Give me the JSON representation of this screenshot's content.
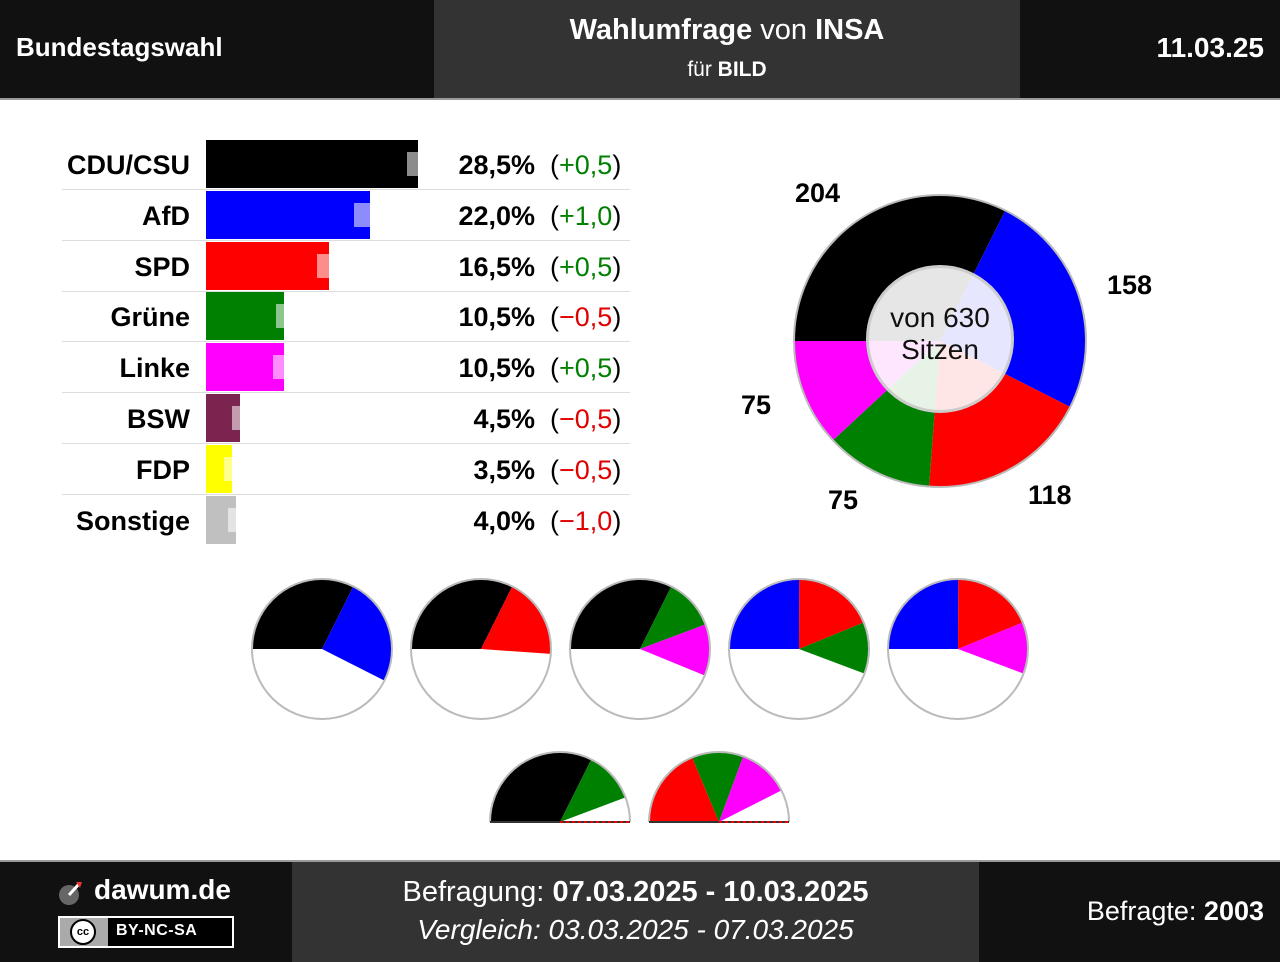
{
  "header": {
    "left_title": "Bundestagswahl",
    "poll_title_bold": "Wahlumfrage",
    "poll_title_von": "von",
    "poll_institute": "INSA",
    "poll_sub_fuer": "für",
    "poll_client": "BILD",
    "date": "11.03.25"
  },
  "footer": {
    "brand": "dawum.de",
    "license": "BY-NC-SA",
    "license_icon_text": "cc",
    "befragung_label": "Befragung:",
    "befragung_range": "07.03.2025 - 10.03.2025",
    "vergleich_label": "Vergleich:",
    "vergleich_range": "03.03.2025 - 07.03.2025",
    "befragte_label": "Befragte:",
    "befragte_value": "2003"
  },
  "chart_data": [
    {
      "type": "bar",
      "categories": [
        "CDU/CSU",
        "AfD",
        "SPD",
        "Grüne",
        "Linke",
        "BSW",
        "FDP",
        "Sonstige"
      ],
      "values": [
        28.5,
        22.0,
        16.5,
        10.5,
        10.5,
        4.5,
        3.5,
        4.0
      ],
      "previous": [
        28.0,
        21.0,
        16.0,
        11.0,
        10.0,
        5.0,
        4.0,
        5.0
      ],
      "value_labels": [
        "28,5%",
        "22,0%",
        "16,5%",
        "10,5%",
        "10,5%",
        "4,5%",
        "3,5%",
        "4,0%"
      ],
      "diff_labels": [
        "(+0,5)",
        "(+1,0)",
        "(+0,5)",
        "(−0,5)",
        "(+0,5)",
        "(−0,5)",
        "(−0,5)",
        "(−1,0)"
      ],
      "diff_signs": [
        "pos",
        "pos",
        "pos",
        "neg",
        "pos",
        "neg",
        "neg",
        "neg"
      ],
      "colors": [
        "#000000",
        "#0000ff",
        "#ff0000",
        "#008000",
        "#ff00ff",
        "#7b2450",
        "#ffff00",
        "#c0c0c0"
      ]
    },
    {
      "type": "pie",
      "categories": [
        "CDU/CSU",
        "AfD",
        "SPD",
        "Grüne",
        "Linke"
      ],
      "values": [
        204,
        158,
        118,
        75,
        75
      ],
      "labels": [
        "204",
        "158",
        "118",
        "75",
        "75"
      ],
      "colors": [
        "#000000",
        "#0000ff",
        "#ff0000",
        "#008000",
        "#ff00ff"
      ],
      "center_line1": "von 630",
      "center_line2": "Sitzen"
    },
    {
      "type": "pie",
      "subtype": "coalitions",
      "coalitions": [
        {
          "parties": [
            "CDU/CSU",
            "AfD"
          ],
          "seats": [
            204,
            158
          ],
          "colors": [
            "#000000",
            "#0000ff"
          ]
        },
        {
          "parties": [
            "CDU/CSU",
            "SPD"
          ],
          "seats": [
            204,
            118
          ],
          "colors": [
            "#000000",
            "#ff0000"
          ]
        },
        {
          "parties": [
            "CDU/CSU",
            "Grüne",
            "Linke"
          ],
          "seats": [
            204,
            75,
            75
          ],
          "colors": [
            "#000000",
            "#008000",
            "#ff00ff"
          ]
        },
        {
          "parties": [
            "AfD",
            "SPD",
            "Grüne"
          ],
          "seats": [
            158,
            118,
            75
          ],
          "colors": [
            "#0000ff",
            "#ff0000",
            "#008000"
          ]
        },
        {
          "parties": [
            "AfD",
            "SPD",
            "Linke"
          ],
          "seats": [
            158,
            118,
            75
          ],
          "colors": [
            "#0000ff",
            "#ff0000",
            "#ff00ff"
          ]
        }
      ],
      "half_coalitions": [
        {
          "parties": [
            "CDU/CSU",
            "Grüne"
          ],
          "seats": [
            204,
            75
          ],
          "colors": [
            "#000000",
            "#008000"
          ]
        },
        {
          "parties": [
            "SPD",
            "Grüne",
            "Linke"
          ],
          "seats": [
            118,
            75,
            75
          ],
          "colors": [
            "#ff0000",
            "#008000",
            "#ff00ff"
          ]
        }
      ],
      "total_seats": 630
    }
  ]
}
